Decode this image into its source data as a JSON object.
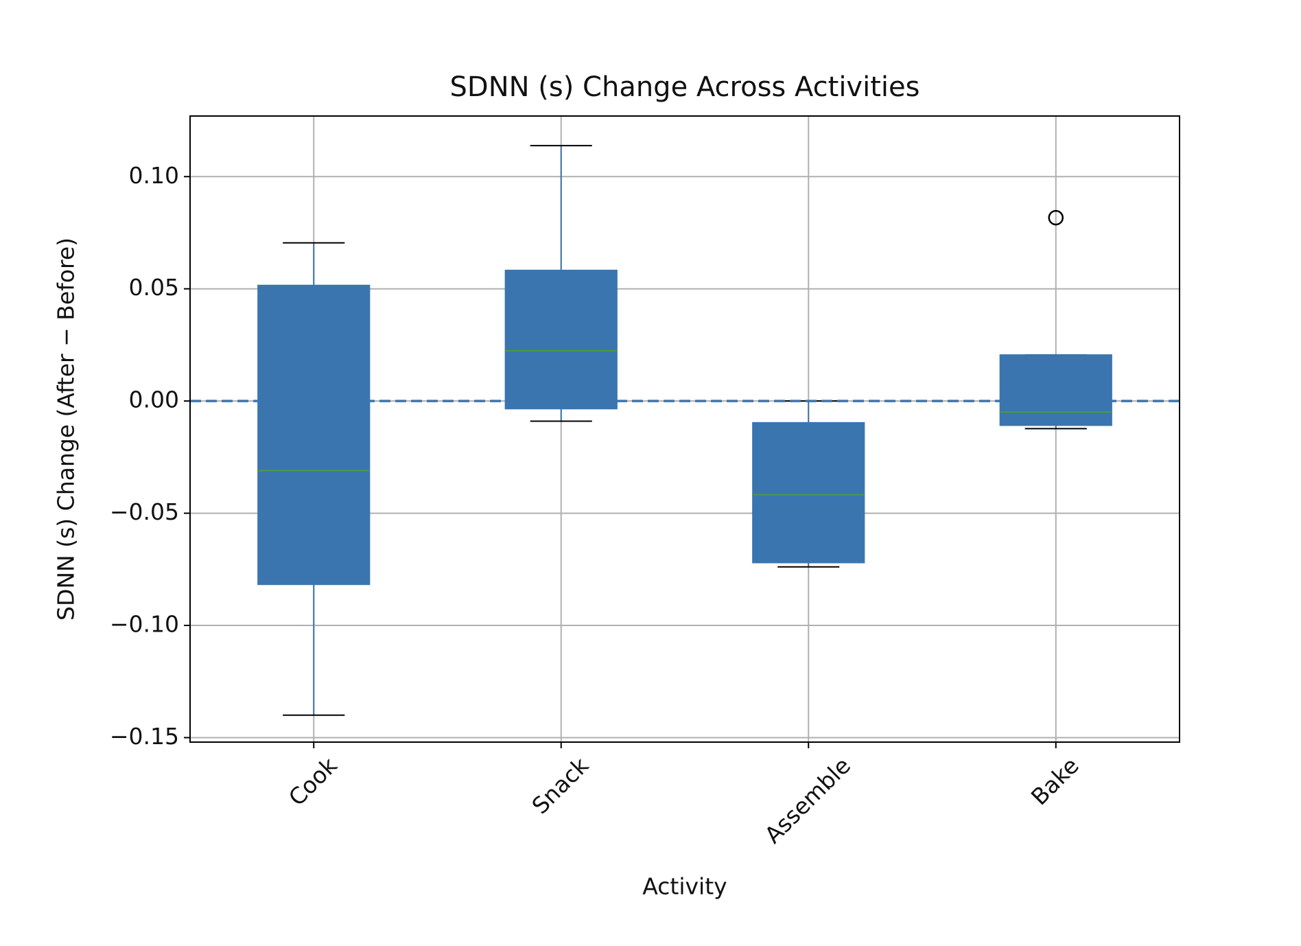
{
  "chart_data": {
    "type": "box",
    "title": "SDNN (s) Change Across Activities",
    "x_label": "Activity",
    "y_label": "SDNN (s) Change (After − Before)",
    "categories": [
      "Cook",
      "Snack",
      "Assemble",
      "Bake"
    ],
    "boxes": [
      {
        "whislo": -0.14,
        "q1": -0.0817,
        "med": -0.031,
        "q3": 0.0515,
        "whishi": 0.0705,
        "fliers": []
      },
      {
        "whislo": -0.009,
        "q1": -0.0034,
        "med": 0.0224,
        "q3": 0.0582,
        "whishi": 0.1138,
        "fliers": []
      },
      {
        "whislo": -0.0739,
        "q1": -0.072,
        "med": -0.0418,
        "q3": -0.0097,
        "whishi": 0.0,
        "fliers": []
      },
      {
        "whislo": -0.0123,
        "q1": -0.0108,
        "med": -0.0049,
        "q3": 0.0205,
        "whishi": 0.0205,
        "fliers": [
          0.0817
        ]
      }
    ],
    "color": "#3a75af",
    "median_color": "#4e9a3a",
    "hline": 0,
    "ylim": [
      -0.152,
      0.127
    ],
    "yticks": [
      {
        "value": -0.15,
        "label": "−0.15"
      },
      {
        "value": -0.1,
        "label": "−0.10"
      },
      {
        "value": -0.05,
        "label": "−0.05"
      },
      {
        "value": 0,
        "label": "0.00"
      },
      {
        "value": 0.05,
        "label": "0.05"
      },
      {
        "value": 0.1,
        "label": "0.10"
      }
    ],
    "grid": true
  }
}
